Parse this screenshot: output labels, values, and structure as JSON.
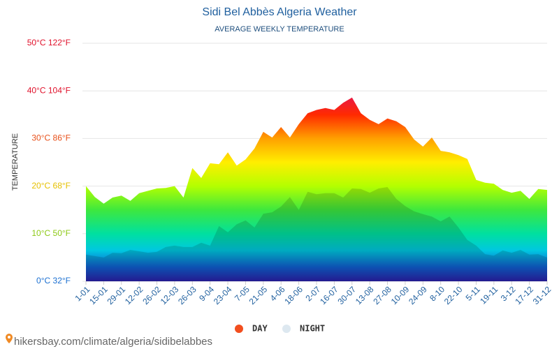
{
  "chart_data": {
    "type": "area",
    "title": "Sidi Bel Abbès Algeria Weather",
    "subtitle": "AVERAGE WEEKLY TEMPERATURE",
    "y_label": "TEMPERATURE",
    "source": "hikersbay.com/climate/algeria/sidibelabbes",
    "categories": [
      "1-01",
      null,
      "15-01",
      null,
      "29-01",
      null,
      "12-02",
      null,
      "26-02",
      null,
      "12-03",
      null,
      "26-03",
      null,
      "9-04",
      null,
      "23-04",
      null,
      "7-05",
      null,
      "21-05",
      null,
      "4-06",
      null,
      "18-06",
      null,
      "2-07",
      null,
      "16-07",
      null,
      "30-07",
      null,
      "13-08",
      null,
      "27-08",
      null,
      "10-09",
      null,
      "24-09",
      null,
      "8-10",
      null,
      "22-10",
      null,
      "5-11",
      null,
      "19-11",
      null,
      "3-12",
      null,
      "17-12",
      null,
      "31-12"
    ],
    "series": [
      {
        "name": "DAY",
        "color": "#f24e1e",
        "values": [
          20,
          17.7,
          16.3,
          17.6,
          18,
          16.9,
          18.5,
          19,
          19.5,
          19.6,
          20,
          17.6,
          23.8,
          21.7,
          24.8,
          24.6,
          27.1,
          24.3,
          25.6,
          27.9,
          31.4,
          30.2,
          32.4,
          30.2,
          33,
          35.3,
          36,
          36.4,
          36,
          37.5,
          38.6,
          35.3,
          33.9,
          33,
          34.2,
          33.6,
          32.4,
          29.8,
          28.3,
          30.2,
          27.4,
          27.1,
          26.5,
          25.7,
          21.3,
          20.7,
          20.5,
          19.2,
          18.6,
          19,
          17.3,
          19.4,
          19.2
        ]
      },
      {
        "name": "NIGHT",
        "color": "#dde8f0",
        "values": [
          5.6,
          5.3,
          5,
          6,
          5.9,
          6.6,
          6.3,
          6,
          6.2,
          7.2,
          7.5,
          7.2,
          7.2,
          8.1,
          7.5,
          11.6,
          10.3,
          12,
          12.8,
          11.3,
          14.2,
          14.5,
          15.7,
          17.7,
          15,
          18.8,
          18.3,
          18.5,
          18.5,
          17.6,
          19.5,
          19.4,
          18.6,
          19.5,
          19.8,
          17.3,
          15.8,
          14.7,
          14.1,
          13.6,
          12.6,
          13.6,
          11.3,
          8.7,
          7.5,
          5.7,
          5.4,
          6.5,
          6,
          6.6,
          5.6,
          5.7,
          5
        ]
      }
    ],
    "ylim": [
      0,
      50
    ],
    "yticks": [
      {
        "value": 0,
        "label": "0°C 32°F"
      },
      {
        "value": 10,
        "label": "10°C 50°F"
      },
      {
        "value": 20,
        "label": "20°C 68°F"
      },
      {
        "value": 30,
        "label": "30°C 86°F"
      },
      {
        "value": 40,
        "label": "40°C 104°F"
      },
      {
        "value": 50,
        "label": "50°C 122°F"
      }
    ],
    "ytick_colors": [
      "#1a6fd1",
      "#8cc814",
      "#e6c000",
      "#e8501a",
      "#e0102a",
      "#e0102a"
    ],
    "grid": true
  }
}
